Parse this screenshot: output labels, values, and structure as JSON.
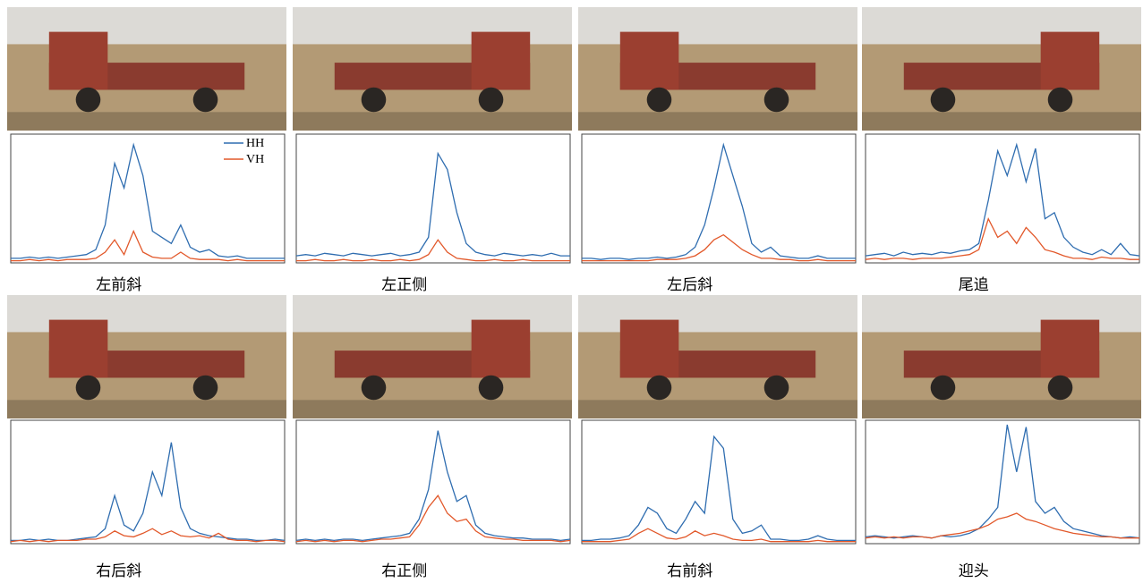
{
  "panels": [
    {
      "caption": "左前斜",
      "chart_data": {
        "type": "line",
        "ylim": [
          0,
          100
        ],
        "legend": "upper right",
        "series": [
          {
            "name": "HH",
            "color": "#2f6db0",
            "values": [
              3,
              3,
              4,
              3,
              4,
              3,
              4,
              5,
              6,
              10,
              30,
              80,
              60,
              95,
              70,
              25,
              20,
              15,
              30,
              12,
              8,
              10,
              5,
              4,
              5,
              3,
              3,
              3,
              3,
              3
            ]
          },
          {
            "name": "VH",
            "color": "#e2582a",
            "values": [
              1,
              1,
              2,
              1,
              2,
              1,
              2,
              2,
              2,
              3,
              8,
              18,
              6,
              25,
              8,
              4,
              3,
              3,
              8,
              3,
              2,
              2,
              2,
              1,
              2,
              1,
              1,
              1,
              1,
              1
            ]
          }
        ]
      }
    },
    {
      "caption": "左正侧",
      "chart_data": {
        "type": "line",
        "ylim": [
          0,
          100
        ],
        "series": [
          {
            "color": "#2f6db0",
            "values": [
              5,
              6,
              5,
              7,
              6,
              5,
              7,
              6,
              5,
              6,
              7,
              5,
              6,
              8,
              20,
              88,
              75,
              40,
              15,
              8,
              6,
              5,
              7,
              6,
              5,
              6,
              5,
              7,
              5,
              5
            ]
          },
          {
            "color": "#e2582a",
            "values": [
              1,
              1,
              2,
              1,
              1,
              2,
              1,
              1,
              2,
              1,
              1,
              2,
              1,
              2,
              6,
              18,
              8,
              3,
              2,
              1,
              1,
              2,
              1,
              1,
              2,
              1,
              1,
              1,
              1,
              1
            ]
          }
        ]
      }
    },
    {
      "caption": "左后斜",
      "chart_data": {
        "type": "line",
        "ylim": [
          0,
          100
        ],
        "series": [
          {
            "color": "#2f6db0",
            "values": [
              3,
              3,
              2,
              3,
              3,
              2,
              3,
              3,
              4,
              3,
              4,
              6,
              12,
              30,
              60,
              95,
              70,
              45,
              15,
              8,
              12,
              5,
              4,
              3,
              3,
              5,
              3,
              3,
              3,
              3
            ]
          },
          {
            "color": "#e2582a",
            "values": [
              1,
              1,
              1,
              1,
              1,
              1,
              1,
              1,
              2,
              2,
              2,
              3,
              5,
              10,
              18,
              22,
              16,
              10,
              6,
              3,
              3,
              2,
              2,
              1,
              1,
              2,
              1,
              1,
              1,
              1
            ]
          }
        ]
      }
    },
    {
      "caption": "尾追",
      "chart_data": {
        "type": "line",
        "ylim": [
          0,
          100
        ],
        "series": [
          {
            "color": "#2f6db0",
            "values": [
              5,
              6,
              7,
              5,
              8,
              6,
              7,
              6,
              8,
              7,
              9,
              10,
              15,
              50,
              90,
              70,
              95,
              65,
              92,
              35,
              40,
              20,
              12,
              8,
              6,
              10,
              6,
              15,
              6,
              5
            ]
          },
          {
            "color": "#e2582a",
            "values": [
              2,
              3,
              2,
              3,
              3,
              2,
              3,
              3,
              3,
              4,
              5,
              6,
              10,
              35,
              20,
              25,
              15,
              28,
              20,
              10,
              8,
              5,
              3,
              3,
              2,
              4,
              3,
              3,
              2,
              2
            ]
          }
        ]
      }
    },
    {
      "caption": "右后斜",
      "chart_data": {
        "type": "line",
        "ylim": [
          0,
          100
        ],
        "series": [
          {
            "color": "#2f6db0",
            "values": [
              2,
              2,
              3,
              2,
              3,
              2,
              2,
              3,
              4,
              5,
              12,
              40,
              15,
              10,
              25,
              60,
              40,
              85,
              30,
              12,
              8,
              6,
              5,
              4,
              3,
              3,
              2,
              2,
              3,
              2
            ]
          },
          {
            "color": "#e2582a",
            "values": [
              1,
              2,
              1,
              2,
              1,
              2,
              2,
              2,
              3,
              3,
              5,
              10,
              6,
              5,
              8,
              12,
              7,
              10,
              6,
              5,
              6,
              4,
              8,
              3,
              2,
              2,
              1,
              2,
              2,
              1
            ]
          }
        ]
      }
    },
    {
      "caption": "右正侧",
      "chart_data": {
        "type": "line",
        "ylim": [
          0,
          100
        ],
        "series": [
          {
            "color": "#2f6db0",
            "values": [
              2,
              3,
              2,
              3,
              2,
              3,
              3,
              2,
              3,
              4,
              5,
              6,
              8,
              20,
              45,
              95,
              60,
              35,
              40,
              15,
              8,
              6,
              5,
              4,
              4,
              3,
              3,
              3,
              2,
              3
            ]
          },
          {
            "color": "#e2582a",
            "values": [
              1,
              2,
              1,
              2,
              1,
              2,
              2,
              1,
              2,
              3,
              3,
              4,
              5,
              15,
              30,
              40,
              25,
              18,
              20,
              10,
              5,
              4,
              3,
              3,
              2,
              2,
              2,
              2,
              1,
              2
            ]
          }
        ]
      }
    },
    {
      "caption": "右前斜",
      "chart_data": {
        "type": "line",
        "ylim": [
          0,
          100
        ],
        "series": [
          {
            "color": "#2f6db0",
            "values": [
              2,
              2,
              3,
              3,
              4,
              6,
              15,
              30,
              25,
              12,
              8,
              20,
              35,
              25,
              90,
              80,
              20,
              8,
              10,
              15,
              3,
              3,
              2,
              2,
              3,
              6,
              3,
              2,
              2,
              2
            ]
          },
          {
            "color": "#e2582a",
            "values": [
              1,
              1,
              1,
              1,
              2,
              3,
              8,
              12,
              8,
              4,
              3,
              5,
              10,
              6,
              8,
              6,
              3,
              2,
              2,
              3,
              1,
              1,
              1,
              1,
              1,
              2,
              1,
              1,
              1,
              1
            ]
          }
        ]
      }
    },
    {
      "caption": "迎头",
      "chart_data": {
        "type": "line",
        "ylim": [
          0,
          100
        ],
        "series": [
          {
            "color": "#2f6db0",
            "values": [
              5,
              6,
              5,
              4,
              5,
              6,
              5,
              4,
              6,
              5,
              6,
              8,
              12,
              20,
              30,
              100,
              60,
              98,
              35,
              25,
              30,
              18,
              12,
              10,
              8,
              6,
              5,
              4,
              5,
              4
            ]
          },
          {
            "color": "#e2582a",
            "values": [
              4,
              5,
              4,
              5,
              4,
              5,
              5,
              4,
              6,
              7,
              8,
              10,
              12,
              15,
              20,
              22,
              25,
              20,
              18,
              15,
              12,
              10,
              8,
              7,
              6,
              5,
              5,
              4,
              4,
              4
            ]
          }
        ]
      }
    }
  ]
}
